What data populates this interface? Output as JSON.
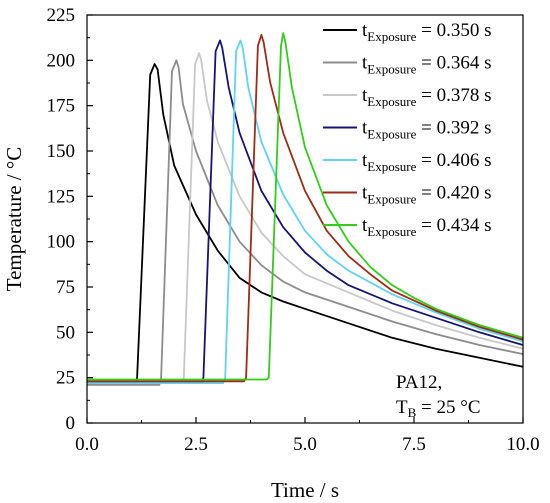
{
  "chart_data": {
    "type": "line",
    "xlabel": "Time / s",
    "ylabel": "Temperature / °C",
    "xlim": [
      0,
      10
    ],
    "ylim": [
      0,
      225
    ],
    "xticks": [
      "0.0",
      "2.5",
      "5.0",
      "7.5",
      "10.0"
    ],
    "yticks": [
      "0",
      "25",
      "50",
      "75",
      "100",
      "125",
      "150",
      "175",
      "200",
      "225"
    ],
    "grid": false,
    "legend_position": "top-right",
    "annotation": {
      "line1": "PA12,",
      "line2_main": "T",
      "line2_sub": "B",
      "line2_rest": " = 25 °C"
    },
    "legend_label_parts": {
      "main": "t",
      "sub": "Exposure",
      "eq": " = "
    },
    "series": [
      {
        "name": "tExposure = 0.350 s",
        "value_label": "0.350 s",
        "color": "#000000",
        "x": [
          0,
          1.12,
          1.15,
          1.45,
          1.55,
          1.62,
          1.75,
          2.0,
          2.5,
          3.0,
          3.5,
          4.0,
          4.5,
          5.0,
          6.0,
          7.0,
          8.0,
          9.0,
          10.0
        ],
        "y": [
          22,
          22,
          25,
          192,
          198,
          195,
          170,
          142,
          115,
          95,
          80,
          72,
          67,
          63,
          55,
          47,
          41,
          36,
          31
        ]
      },
      {
        "name": "tExposure = 0.364 s",
        "value_label": "0.364 s",
        "color": "#8c8c8c",
        "x": [
          0,
          1.66,
          1.7,
          1.95,
          2.05,
          2.1,
          2.2,
          2.5,
          3.0,
          3.5,
          4.0,
          4.5,
          5.0,
          6.0,
          7.0,
          8.0,
          9.0,
          10.0
        ],
        "y": [
          21,
          21,
          25,
          194,
          200,
          196,
          176,
          150,
          120,
          100,
          87,
          78,
          72,
          64,
          56,
          49,
          43,
          38
        ]
      },
      {
        "name": "tExposure = 0.378 s",
        "value_label": "0.378 s",
        "color": "#c8c8c8",
        "x": [
          0,
          2.17,
          2.22,
          2.48,
          2.57,
          2.62,
          2.75,
          3.0,
          3.5,
          4.0,
          4.5,
          5.0,
          6.0,
          7.0,
          8.0,
          9.0,
          10.0
        ],
        "y": [
          23,
          23,
          25,
          198,
          204,
          200,
          178,
          155,
          125,
          105,
          92,
          82,
          72,
          62,
          54,
          47,
          41
        ]
      },
      {
        "name": "tExposure = 0.392 s",
        "value_label": "0.392 s",
        "color": "#141478",
        "x": [
          0,
          2.62,
          2.67,
          2.95,
          3.05,
          3.1,
          3.25,
          3.5,
          4.0,
          4.5,
          5.0,
          5.5,
          6.0,
          7.0,
          8.0,
          9.0,
          10.0
        ],
        "y": [
          22,
          22,
          25,
          205,
          211,
          207,
          185,
          160,
          128,
          108,
          94,
          84,
          76,
          66,
          58,
          50,
          43
        ]
      },
      {
        "name": "tExposure = 0.406 s",
        "value_label": "0.406 s",
        "color": "#5fd3f0",
        "x": [
          0,
          3.12,
          3.17,
          3.42,
          3.52,
          3.57,
          3.7,
          4.0,
          4.5,
          5.0,
          5.5,
          6.0,
          7.0,
          8.0,
          9.0,
          10.0
        ],
        "y": [
          22,
          22,
          25,
          205,
          211,
          207,
          185,
          155,
          126,
          106,
          93,
          84,
          71,
          61,
          52,
          45
        ]
      },
      {
        "name": "tExposure = 0.420 s",
        "value_label": "0.420 s",
        "color": "#a02a18",
        "x": [
          0,
          3.6,
          3.65,
          3.92,
          4.0,
          4.05,
          4.2,
          4.5,
          5.0,
          5.5,
          6.0,
          6.5,
          7.0,
          8.0,
          9.0,
          10.0
        ],
        "y": [
          23,
          23,
          25,
          208,
          214,
          210,
          188,
          160,
          128,
          106,
          92,
          82,
          73,
          62,
          53,
          46
        ]
      },
      {
        "name": "tExposure = 0.434 s",
        "value_label": "0.434 s",
        "color": "#33cc1a",
        "x": [
          0,
          4.12,
          4.17,
          4.45,
          4.5,
          4.55,
          4.7,
          5.0,
          5.5,
          6.0,
          6.5,
          7.0,
          7.5,
          8.0,
          9.0,
          10.0
        ],
        "y": [
          24,
          24,
          25,
          208,
          215,
          210,
          185,
          152,
          120,
          100,
          86,
          76,
          69,
          63,
          54,
          47
        ]
      }
    ]
  }
}
